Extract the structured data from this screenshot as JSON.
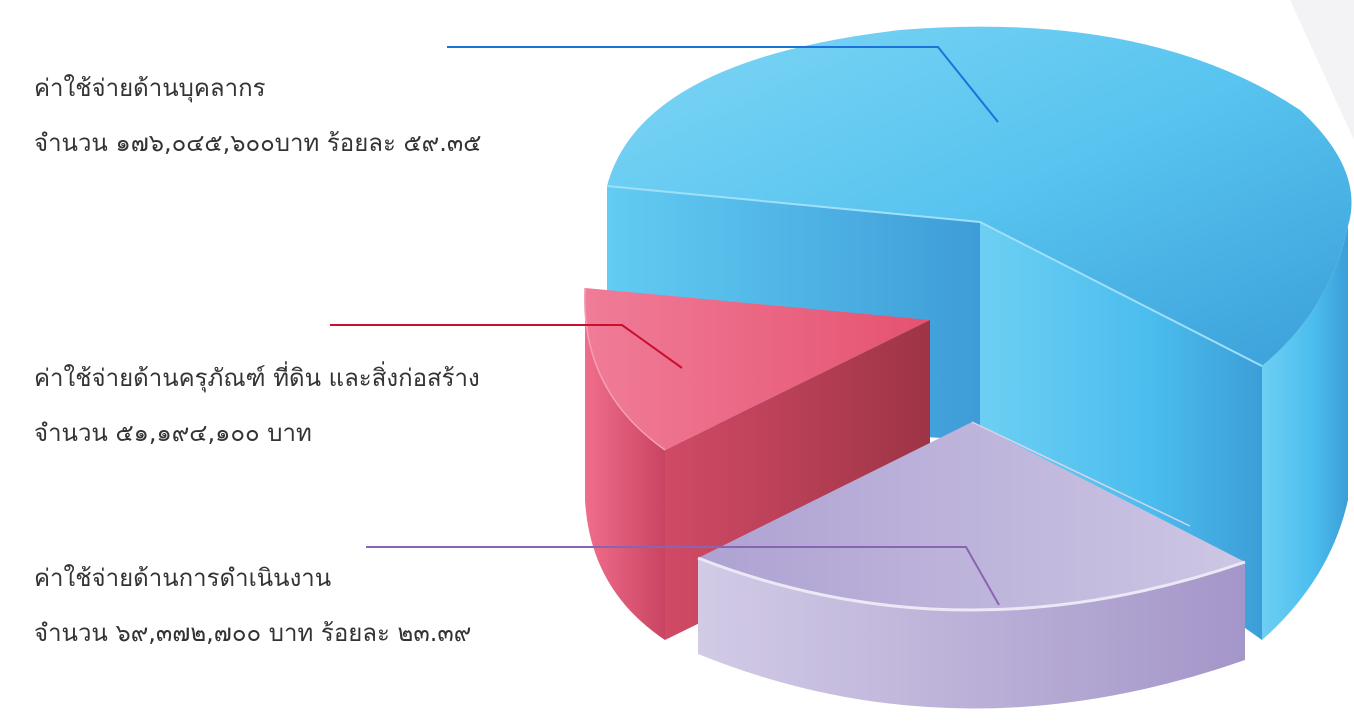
{
  "chart_data": {
    "type": "pie",
    "style": "3d-exploded",
    "slices": [
      {
        "name": "ค่าใช้จ่ายด้านบุคลากร",
        "value": 176045600,
        "percent": 59.35,
        "amount_text": "จำนวน ๑๗๖,๐๔๕,๖๐๐บาท ร้อยละ ๕๙.๓๕",
        "color": "#4fc3f0"
      },
      {
        "name": "ค่าใช้จ่ายด้านครุภัณฑ์ ที่ดิน และสิ่งก่อสร้าง",
        "value": 51194100,
        "amount_text": "จำนวน ๕๑,๑๙๔,๑๐๐ บาท",
        "color": "#e8587a"
      },
      {
        "name": "ค่าใช้จ่ายด้านการดำเนินงาน",
        "value": 69372700,
        "percent": 23.39,
        "amount_text": "จำนวน ๖๙,๓๗๒,๗๐๐ บาท ร้อยละ ๒๓.๓๙",
        "color": "#b7aed6"
      }
    ]
  },
  "colors": {
    "blue_leader": "#1a73d9",
    "red_leader": "#c8102e",
    "purple_leader": "#8a64b0"
  }
}
